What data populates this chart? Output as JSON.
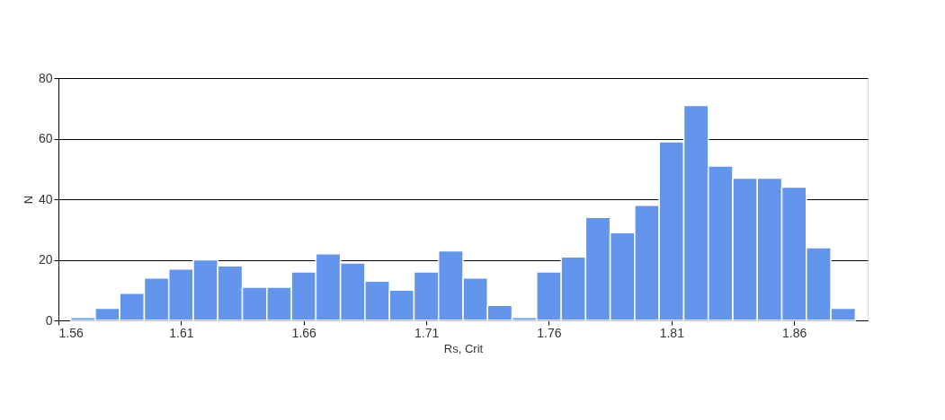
{
  "chart_data": {
    "type": "histogram",
    "xlabel": "Rs, Crit",
    "ylabel": "N",
    "bins": [
      1.565,
      1.575,
      1.585,
      1.595,
      1.605,
      1.615,
      1.625,
      1.635,
      1.645,
      1.655,
      1.665,
      1.675,
      1.685,
      1.695,
      1.705,
      1.715,
      1.725,
      1.735,
      1.745,
      1.755,
      1.765,
      1.775,
      1.785,
      1.795,
      1.805,
      1.815,
      1.825,
      1.835,
      1.845,
      1.855,
      1.865,
      1.875,
      1.885
    ],
    "values": [
      1,
      4,
      9,
      14,
      17,
      20,
      18,
      11,
      11,
      16,
      22,
      19,
      13,
      10,
      16,
      23,
      14,
      5,
      1,
      16,
      21,
      34,
      29,
      38,
      59,
      71,
      51,
      47,
      47,
      44,
      24,
      4
    ],
    "color": "#6495ed",
    "xlim": [
      1.56,
      1.89
    ],
    "xticks": [
      1.56,
      1.61,
      1.66,
      1.71,
      1.76,
      1.81,
      1.86
    ],
    "ylim": [
      0,
      80
    ],
    "yticks": [
      0,
      20,
      40,
      60,
      80
    ],
    "grid": "y"
  }
}
